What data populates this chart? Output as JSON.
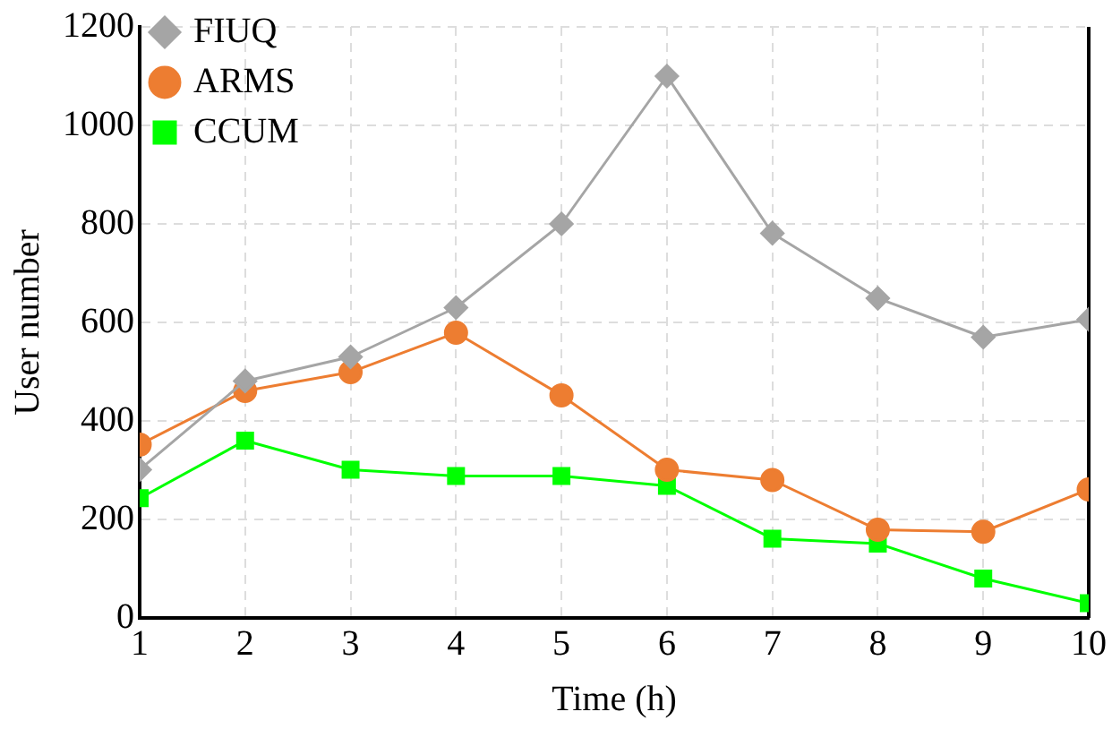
{
  "chart_data": {
    "type": "line",
    "xlabel": "Time (h)",
    "ylabel": "User number",
    "x": [
      1,
      2,
      3,
      4,
      5,
      6,
      7,
      8,
      9,
      10
    ],
    "series": [
      {
        "name": "CCUM",
        "color": "#00ff00",
        "marker": "square",
        "values": [
          243,
          360,
          301,
          288,
          288,
          268,
          161,
          151,
          80,
          30
        ]
      },
      {
        "name": "ARMS",
        "color": "#ed7d31",
        "marker": "circle",
        "values": [
          352,
          461,
          499,
          579,
          452,
          301,
          280,
          179,
          175,
          261
        ]
      },
      {
        "name": "FIUQ",
        "color": "#a5a5a5",
        "marker": "diamond",
        "values": [
          301,
          481,
          530,
          630,
          800,
          1100,
          781,
          649,
          570,
          606
        ]
      }
    ],
    "xlim": [
      1,
      10
    ],
    "xticks": [
      1,
      2,
      3,
      4,
      5,
      6,
      7,
      8,
      9,
      10
    ],
    "ylim": [
      0,
      1200
    ],
    "yticks": [
      0,
      200,
      400,
      600,
      800,
      1000,
      1200
    ],
    "grid": true,
    "legend": "top left",
    "line_style": "solid"
  }
}
